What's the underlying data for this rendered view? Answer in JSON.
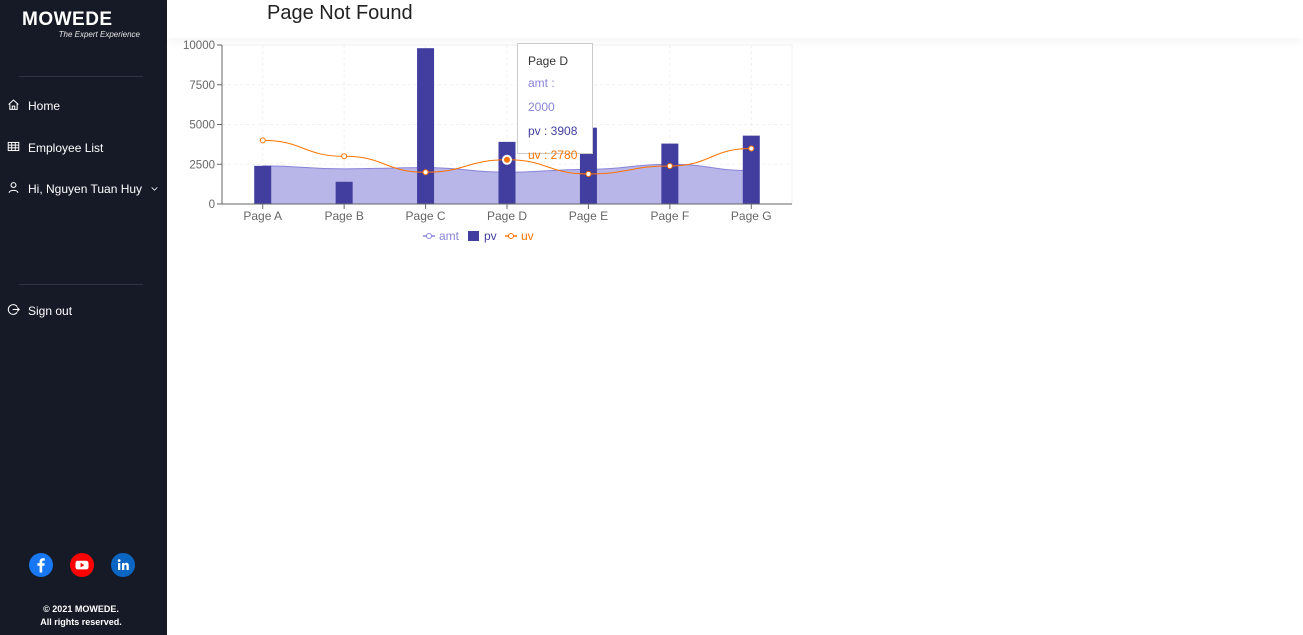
{
  "brand": {
    "name": "MOWEDE",
    "tagline": "The Expert Experience"
  },
  "sidebar": {
    "items": [
      {
        "label": "Home",
        "icon": "home-icon"
      },
      {
        "label": "Employee List",
        "icon": "table-icon"
      },
      {
        "label": "Hi, Nguyen Tuan Huy",
        "icon": "user-icon"
      }
    ],
    "signout": {
      "label": "Sign out",
      "icon": "logout-icon"
    },
    "socials": [
      {
        "name": "facebook-icon",
        "color": "#1877f2"
      },
      {
        "name": "youtube-icon",
        "color": "#ff0000"
      },
      {
        "name": "linkedin-icon",
        "color": "#0a66c2"
      }
    ],
    "copyright_line1": "© 2021 MOWEDE.",
    "copyright_line2": "All rights reserved."
  },
  "header": {
    "title": "Page Not Found"
  },
  "chart_data": {
    "type": "bar",
    "categories": [
      "Page A",
      "Page B",
      "Page C",
      "Page D",
      "Page E",
      "Page F",
      "Page G"
    ],
    "series": [
      {
        "name": "amt",
        "type": "area",
        "color": "#8884d8",
        "values": [
          2400,
          2210,
          2290,
          2000,
          2181,
          2500,
          2100
        ]
      },
      {
        "name": "pv",
        "type": "bar",
        "color": "#413ea0",
        "values": [
          2400,
          1398,
          9800,
          3908,
          4800,
          3800,
          4300
        ]
      },
      {
        "name": "uv",
        "type": "line",
        "color": "#ff7300",
        "values": [
          4000,
          3000,
          2000,
          2780,
          1890,
          2390,
          3490
        ]
      }
    ],
    "ylim": [
      0,
      10000
    ],
    "yticks": [
      "0",
      "2500",
      "5000",
      "7500",
      "10000"
    ],
    "grid": true,
    "legend": "bottom",
    "tooltip": {
      "label": "Page D",
      "amt": "amt : 2000",
      "pv": "pv : 3908",
      "uv": "uv : 2780"
    }
  }
}
